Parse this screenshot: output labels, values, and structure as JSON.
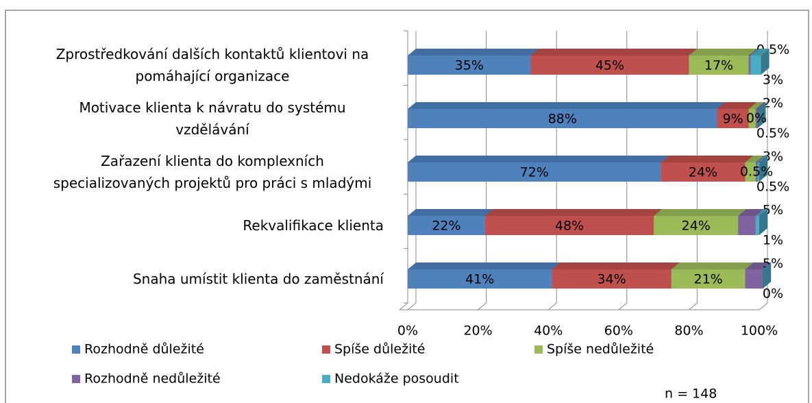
{
  "chart_data": {
    "type": "stacked_barh",
    "categories": [
      "Zprostředkování dalších kontaktů klientovi na pomáhající organizace",
      "Motivace klienta k návratu do systému vzdělávání",
      "Zařazení klienta do komplexních specializovaných projektů pro práci s mladými",
      "Rekvalifikace klienta",
      "Snaha umístit klienta do zaměstnání"
    ],
    "series": [
      {
        "name": "Rozhodně důležité",
        "color": "#4f81bd",
        "values": [
          35,
          88,
          72,
          22,
          41
        ],
        "value_labels": [
          "35%",
          "88%",
          "72%",
          "22%",
          "41%"
        ]
      },
      {
        "name": "Spíše důležité",
        "color": "#c0504d",
        "values": [
          45,
          9,
          24,
          48,
          34
        ],
        "value_labels": [
          "45%",
          "9%",
          "24%",
          "48%",
          "34%"
        ]
      },
      {
        "name": "Spíše nedůležité",
        "color": "#9bbb59",
        "values": [
          17,
          2,
          3,
          24,
          21
        ],
        "value_labels": [
          "17%",
          "2%",
          "3%",
          "24%",
          "21%"
        ]
      },
      {
        "name": "Rozhodně nedůležité",
        "color": "#8064a2",
        "values": [
          0.5,
          0.5,
          0.5,
          5,
          5
        ],
        "value_labels": [
          "0.5%",
          "0.5%",
          "0.5%",
          "5%",
          "5%"
        ]
      },
      {
        "name": "Nedokáže posoudit",
        "color": "#4bacc6",
        "values": [
          3,
          0,
          0.5,
          1,
          0
        ],
        "value_labels": [
          "3%",
          "0%",
          "0.5%",
          "1%",
          "0%"
        ]
      }
    ],
    "xlim": [
      0,
      100
    ],
    "xticks": [
      {
        "value": 0,
        "label": "0%"
      },
      {
        "value": 20,
        "label": "20%"
      },
      {
        "value": 40,
        "label": "40%"
      },
      {
        "value": 60,
        "label": "60%"
      },
      {
        "value": 80,
        "label": "80%"
      },
      {
        "value": 100,
        "label": "100%"
      }
    ],
    "grid": true,
    "annotation": "n = 148"
  }
}
